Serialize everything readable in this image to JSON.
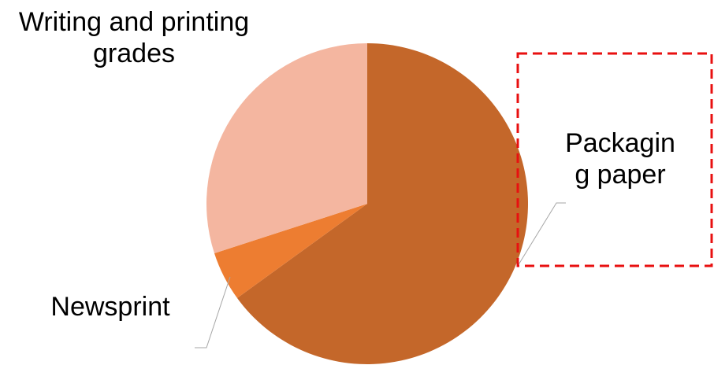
{
  "chart_data": {
    "type": "pie",
    "categories": [
      "Packaging paper",
      "Newsprint",
      "Writing and printing grades"
    ],
    "values": [
      65,
      5,
      30
    ],
    "colors": [
      "#c4672a",
      "#ed7d31",
      "#f4b6a0"
    ]
  }
}
